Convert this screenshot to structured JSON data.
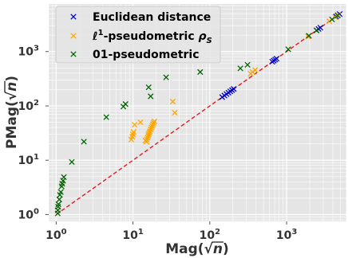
{
  "chart_data": {
    "type": "scatter",
    "xscale": "log",
    "yscale": "log",
    "xlim": [
      0.8,
      6000
    ],
    "ylim": [
      0.75,
      7500
    ],
    "grid": true,
    "legend_position": "top-left",
    "xlabel_parts": [
      "Mag(",
      "n",
      ")"
    ],
    "ylabel_parts": [
      "PMag(",
      "n",
      ")"
    ],
    "xticks": [
      {
        "value": 1,
        "base": "10",
        "exp": "0"
      },
      {
        "value": 10,
        "base": "10",
        "exp": "1"
      },
      {
        "value": 100,
        "base": "10",
        "exp": "2"
      },
      {
        "value": 1000,
        "base": "10",
        "exp": "3"
      }
    ],
    "yticks": [
      {
        "value": 1,
        "base": "10",
        "exp": "0"
      },
      {
        "value": 10,
        "base": "10",
        "exp": "1"
      },
      {
        "value": 100,
        "base": "10",
        "exp": "2"
      },
      {
        "value": 1000,
        "base": "10",
        "exp": "3"
      }
    ],
    "reference_line": {
      "from": [
        1,
        1
      ],
      "to": [
        5000,
        5000
      ],
      "color": "#e41a1c",
      "style": "dashed"
    },
    "series": [
      {
        "name": "Euclidean distance",
        "color": "#0000cc",
        "marker": "x",
        "points": [
          [
            145,
            145
          ],
          [
            155,
            155
          ],
          [
            165,
            165
          ],
          [
            175,
            175
          ],
          [
            185,
            185
          ],
          [
            195,
            195
          ],
          [
            205,
            205
          ],
          [
            650,
            650
          ],
          [
            680,
            680
          ],
          [
            710,
            710
          ],
          [
            740,
            740
          ],
          [
            2450,
            2450
          ],
          [
            2600,
            2600
          ],
          [
            2750,
            2750
          ],
          [
            4400,
            4400
          ],
          [
            4650,
            4650
          ],
          [
            4900,
            4900
          ]
        ]
      },
      {
        "name": "ℓ¹-pseudometric ρ_S",
        "label_parts": [
          "ℓ",
          "1",
          "-pseudometric ",
          "ρ",
          "S"
        ],
        "color": "#ffa500",
        "marker": "x",
        "points": [
          [
            9.5,
            24
          ],
          [
            9.8,
            27
          ],
          [
            10.0,
            30
          ],
          [
            10.2,
            33
          ],
          [
            10.5,
            45
          ],
          [
            12.5,
            50
          ],
          [
            14.5,
            23
          ],
          [
            15.0,
            22
          ],
          [
            15.2,
            24
          ],
          [
            15.5,
            26
          ],
          [
            15.8,
            28
          ],
          [
            16.0,
            30
          ],
          [
            16.3,
            32
          ],
          [
            16.6,
            34
          ],
          [
            17.0,
            37
          ],
          [
            17.4,
            40
          ],
          [
            17.8,
            43
          ],
          [
            18.2,
            46
          ],
          [
            18.6,
            49
          ],
          [
            19.0,
            52
          ],
          [
            35,
            75
          ],
          [
            33,
            120
          ],
          [
            340,
            390
          ],
          [
            360,
            420
          ],
          [
            390,
            455
          ],
          [
            1900,
            1900
          ],
          [
            3600,
            3600
          ],
          [
            4300,
            4300
          ],
          [
            4700,
            4700
          ]
        ]
      },
      {
        "name": "01-pseudometric",
        "color": "#006400",
        "marker": "x",
        "points": [
          [
            1.05,
            1.05
          ],
          [
            1.05,
            1.2
          ],
          [
            1.06,
            1.4
          ],
          [
            1.07,
            1.55
          ],
          [
            1.1,
            1.9
          ],
          [
            1.12,
            2.3
          ],
          [
            1.15,
            2.6
          ],
          [
            1.18,
            3.3
          ],
          [
            1.2,
            3.7
          ],
          [
            1.23,
            4.2
          ],
          [
            1.26,
            4.9
          ],
          [
            1.6,
            9.3
          ],
          [
            2.3,
            22
          ],
          [
            4.5,
            62
          ],
          [
            7.5,
            97
          ],
          [
            8.0,
            108
          ],
          [
            16,
            220
          ],
          [
            17,
            150
          ],
          [
            27,
            335
          ],
          [
            75,
            420
          ],
          [
            250,
            490
          ],
          [
            310,
            570
          ],
          [
            1050,
            1100
          ],
          [
            1950,
            1950
          ],
          [
            2450,
            2450
          ],
          [
            3900,
            3900
          ],
          [
            4600,
            4600
          ]
        ]
      }
    ]
  }
}
